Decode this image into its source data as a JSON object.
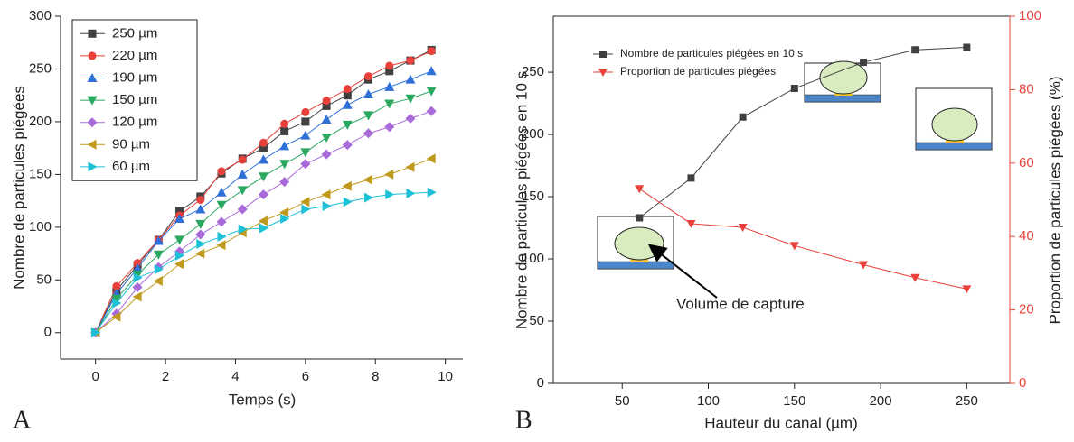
{
  "chart_data": [
    {
      "type": "line",
      "panel_label": "A",
      "x_label": "Temps (s)",
      "y_label": "Nombre de particules piégées",
      "x": [
        0,
        0.6,
        1.2,
        1.8,
        2.4,
        3.0,
        3.6,
        4.2,
        4.8,
        5.4,
        6.0,
        6.6,
        7.2,
        7.8,
        8.4,
        9.0,
        9.6
      ],
      "xlim": [
        -1,
        10.5
      ],
      "xticks": [
        0,
        2,
        4,
        6,
        8,
        10
      ],
      "ylim": [
        -25,
        300
      ],
      "yticks": [
        0,
        50,
        100,
        150,
        200,
        250,
        300
      ],
      "legend": "upper left",
      "series": [
        {
          "name": "250 µm",
          "color": "#404040",
          "marker": "square",
          "values": [
            0,
            40,
            64,
            88,
            115,
            129,
            151,
            165,
            175,
            191,
            200,
            215,
            225,
            240,
            248,
            258,
            268
          ]
        },
        {
          "name": "220 µm",
          "color": "#e8403a",
          "marker": "circle",
          "values": [
            0,
            44,
            66,
            88,
            111,
            126,
            153,
            164,
            180,
            198,
            209,
            220,
            231,
            243,
            253,
            258,
            267
          ]
        },
        {
          "name": "190 µm",
          "color": "#2e6fd8",
          "marker": "triangle-up",
          "values": [
            0,
            37,
            61,
            87,
            108,
            117,
            133,
            150,
            164,
            177,
            187,
            202,
            216,
            226,
            233,
            240,
            248
          ]
        },
        {
          "name": "150 µm",
          "color": "#2aa860",
          "marker": "triangle-down",
          "values": [
            0,
            32,
            55,
            74,
            88,
            103,
            121,
            135,
            148,
            160,
            171,
            185,
            197,
            206,
            217,
            222,
            229
          ]
        },
        {
          "name": "120 µm",
          "color": "#a86ad8",
          "marker": "diamond",
          "values": [
            0,
            18,
            43,
            62,
            77,
            93,
            105,
            117,
            131,
            143,
            160,
            169,
            178,
            189,
            195,
            203,
            210
          ]
        },
        {
          "name": "90 µm",
          "color": "#c09a1c",
          "marker": "triangle-left",
          "values": [
            0,
            15,
            34,
            49,
            65,
            75,
            83,
            95,
            106,
            114,
            124,
            131,
            139,
            145,
            150,
            157,
            165
          ]
        },
        {
          "name": "60 µm",
          "color": "#1ec0d8",
          "marker": "triangle-right",
          "values": [
            0,
            28,
            52,
            60,
            73,
            84,
            91,
            98,
            99,
            108,
            117,
            120,
            124,
            128,
            131,
            132,
            133
          ]
        }
      ]
    },
    {
      "type": "line",
      "panel_label": "B",
      "x_label": "Hauteur du canal (µm)",
      "y_label": "Nombre de particules piégées en 10 s",
      "y2_label": "Proportion de particules piégées (%)",
      "annotation": "Volume de capture",
      "x": [
        60,
        90,
        120,
        150,
        190,
        220,
        250
      ],
      "xlim": [
        10,
        275
      ],
      "xticks": [
        50,
        100,
        150,
        200,
        250
      ],
      "ylim": [
        0,
        295
      ],
      "yticks": [
        0,
        50,
        100,
        150,
        200,
        250
      ],
      "y2lim": [
        0,
        100
      ],
      "y2ticks": [
        0,
        20,
        40,
        60,
        80,
        100
      ],
      "legend": "upper left",
      "series": [
        {
          "name": "Nombre de particules piégées en 10 s",
          "color": "#404040",
          "marker": "square",
          "values": [
            133,
            165,
            214,
            237,
            258,
            268,
            270
          ]
        },
        {
          "name": "Proportion de particules piégées",
          "color": "#e8403a",
          "marker": "triangle-down",
          "axis": "y2",
          "values": [
            53,
            43.5,
            42.5,
            37.5,
            32.3,
            28.8,
            25.7
          ]
        }
      ]
    }
  ]
}
